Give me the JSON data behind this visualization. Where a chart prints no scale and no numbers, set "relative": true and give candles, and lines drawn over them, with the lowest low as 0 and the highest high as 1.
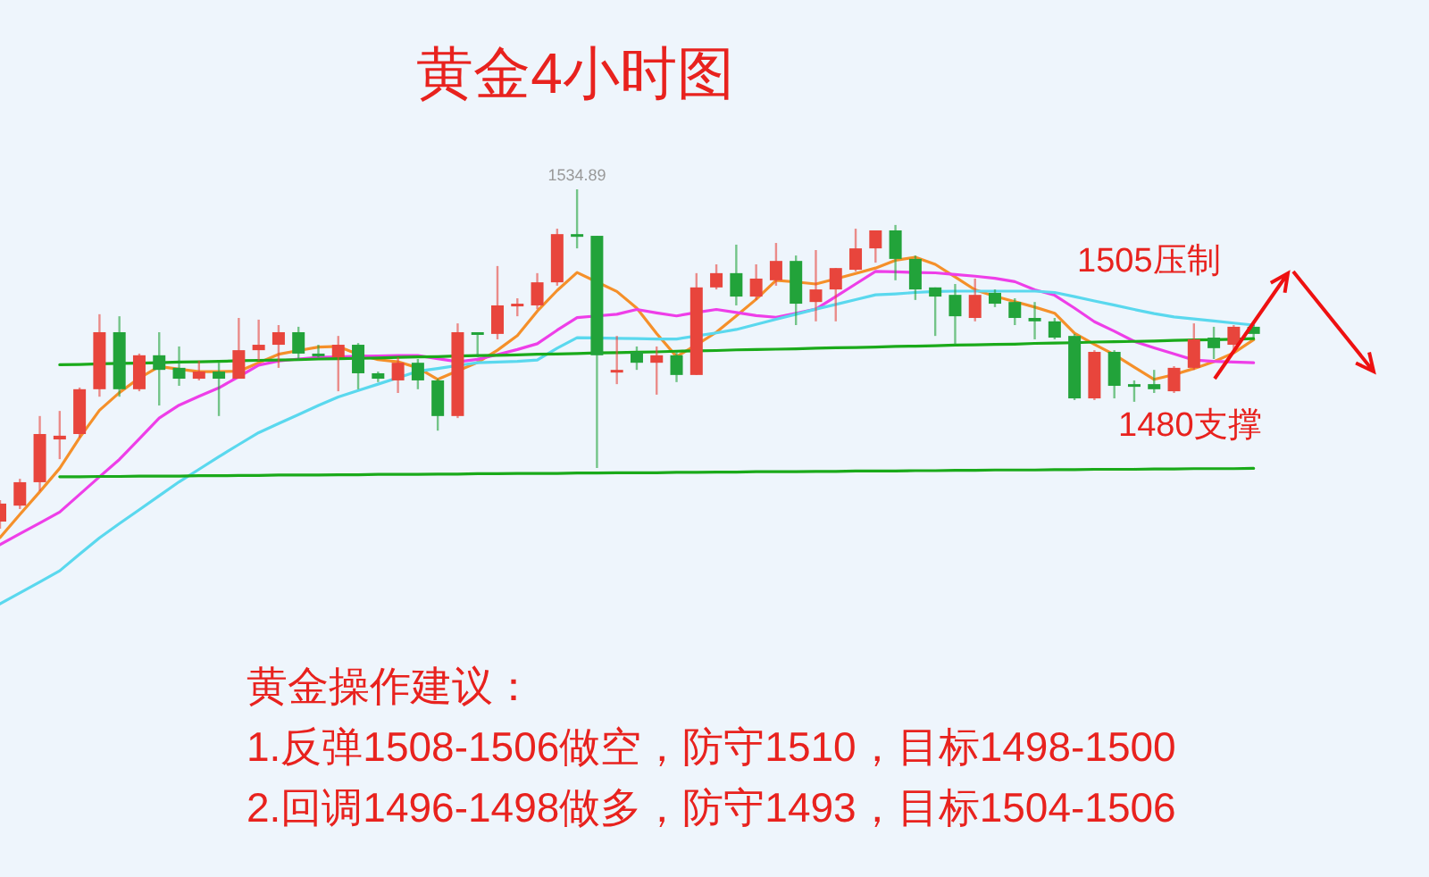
{
  "chart_data": {
    "type": "candlestick",
    "title": "黄金4小时图",
    "relative": true,
    "categories": [
      null,
      null,
      null,
      null,
      null,
      null,
      null,
      null,
      null,
      null,
      null,
      null,
      null,
      null,
      null,
      null,
      null,
      null,
      null,
      null,
      null,
      null,
      null,
      null,
      null,
      null,
      null,
      null,
      null,
      null,
      null,
      null,
      null,
      null,
      null,
      null,
      null,
      null,
      null,
      null,
      null,
      null,
      null,
      null,
      null,
      null,
      null,
      null,
      null,
      null,
      null,
      null,
      null,
      null,
      null,
      null,
      null,
      null,
      null,
      null,
      null,
      null,
      null,
      null
    ],
    "ohlc": [
      [
        0.021,
        0.084,
        0,
        0.074
      ],
      [
        0.068,
        0.147,
        0.058,
        0.137
      ],
      [
        0.137,
        0.332,
        0.111,
        0.279
      ],
      [
        0.263,
        0.347,
        0.205,
        0.274
      ],
      [
        0.279,
        0.416,
        0.268,
        0.411
      ],
      [
        0.411,
        0.632,
        0.389,
        0.579
      ],
      [
        0.579,
        0.626,
        0.389,
        0.411
      ],
      [
        0.411,
        0.516,
        0.405,
        0.511
      ],
      [
        0.511,
        0.579,
        0.363,
        0.468
      ],
      [
        0.474,
        0.537,
        0.421,
        0.442
      ],
      [
        0.442,
        0.495,
        0.437,
        0.463
      ],
      [
        0.463,
        0.489,
        0.332,
        0.442
      ],
      [
        0.442,
        0.621,
        0.442,
        0.526
      ],
      [
        0.526,
        0.616,
        0.495,
        0.542
      ],
      [
        0.542,
        0.6,
        0.474,
        0.579
      ],
      [
        0.579,
        0.595,
        0.495,
        0.516
      ],
      [
        0.516,
        0.542,
        0.505,
        0.511
      ],
      [
        0.505,
        0.568,
        0.405,
        0.542
      ],
      [
        0.542,
        0.547,
        0.411,
        0.458
      ],
      [
        0.458,
        0.463,
        0.432,
        0.442
      ],
      [
        0.437,
        0.505,
        0.4,
        0.489
      ],
      [
        0.489,
        0.5,
        0.411,
        0.437
      ],
      [
        0.437,
        0.442,
        0.289,
        0.332
      ],
      [
        0.332,
        0.605,
        0.326,
        0.579
      ],
      [
        0.579,
        0.579,
        0.505,
        0.574
      ],
      [
        0.574,
        0.774,
        0.558,
        0.658
      ],
      [
        0.658,
        0.679,
        0.626,
        0.663
      ],
      [
        0.658,
        0.753,
        0.647,
        0.726
      ],
      [
        0.726,
        0.884,
        0.716,
        0.868
      ],
      [
        0.868,
        1,
        0.826,
        0.863
      ],
      [
        0.863,
        0.863,
        0.179,
        0.511
      ],
      [
        0.463,
        0.568,
        0.426,
        0.468
      ],
      [
        0.521,
        0.537,
        0.468,
        0.489
      ],
      [
        0.489,
        0.537,
        0.395,
        0.511
      ],
      [
        0.511,
        0.521,
        0.432,
        0.453
      ],
      [
        0.453,
        0.753,
        0.453,
        0.711
      ],
      [
        0.711,
        0.779,
        0.705,
        0.753
      ],
      [
        0.753,
        0.837,
        0.658,
        0.684
      ],
      [
        0.684,
        0.779,
        0.674,
        0.737
      ],
      [
        0.732,
        0.842,
        0.716,
        0.789
      ],
      [
        0.789,
        0.805,
        0.6,
        0.663
      ],
      [
        0.668,
        0.821,
        0.611,
        0.705
      ],
      [
        0.705,
        0.768,
        0.611,
        0.768
      ],
      [
        0.763,
        0.884,
        0.758,
        0.826
      ],
      [
        0.826,
        0.879,
        0.784,
        0.879
      ],
      [
        0.879,
        0.895,
        0.732,
        0.795
      ],
      [
        0.795,
        0.805,
        0.674,
        0.705
      ],
      [
        0.711,
        0.711,
        0.568,
        0.684
      ],
      [
        0.689,
        0.721,
        0.542,
        0.626
      ],
      [
        0.621,
        0.737,
        0.611,
        0.689
      ],
      [
        0.695,
        0.705,
        0.653,
        0.663
      ],
      [
        0.668,
        0.679,
        0.6,
        0.621
      ],
      [
        0.621,
        0.668,
        0.558,
        0.611
      ],
      [
        0.611,
        0.621,
        0.558,
        0.563
      ],
      [
        0.568,
        0.574,
        0.379,
        0.384
      ],
      [
        0.384,
        0.526,
        0.379,
        0.521
      ],
      [
        0.521,
        0.526,
        0.384,
        0.421
      ],
      [
        0.426,
        0.437,
        0.374,
        0.421
      ],
      [
        0.426,
        0.468,
        0.4,
        0.411
      ],
      [
        0.405,
        0.479,
        0.4,
        0.474
      ],
      [
        0.474,
        0.605,
        0.468,
        0.558
      ],
      [
        0.563,
        0.595,
        0.5,
        0.532
      ],
      [
        0.542,
        0.6,
        0.521,
        0.595
      ],
      [
        0.595,
        0.6,
        0.563,
        0.574
      ]
    ],
    "series": [
      {
        "type": "line",
        "color": "#f5902a",
        "values": [
          -0.026,
          0.042,
          0.109,
          0.178,
          0.268,
          0.349,
          0.401,
          0.444,
          0.478,
          0.47,
          0.463,
          0.463,
          0.464,
          0.489,
          0.514,
          0.525,
          0.535,
          0.537,
          0.514,
          0.498,
          0.492,
          0.474,
          0.44,
          0.465,
          0.49,
          0.526,
          0.569,
          0.641,
          0.702,
          0.755,
          0.727,
          0.699,
          0.65,
          0.575,
          0.507,
          0.542,
          0.579,
          0.627,
          0.676,
          0.732,
          0.727,
          0.721,
          0.736,
          0.752,
          0.768,
          0.791,
          0.8,
          0.779,
          0.742,
          0.704,
          0.685,
          0.669,
          0.653,
          0.635,
          0.576,
          0.543,
          0.513,
          0.476,
          0.44,
          0.454,
          0.472,
          0.492,
          0.518,
          0.557
        ]
      },
      {
        "type": "line",
        "color": "#ee3ee8",
        "values": [
          -0.047,
          -0.015,
          0.017,
          0.049,
          0.101,
          0.153,
          0.204,
          0.265,
          0.326,
          0.364,
          0.39,
          0.415,
          0.448,
          0.482,
          0.494,
          0.5,
          0.505,
          0.506,
          0.508,
          0.509,
          0.51,
          0.51,
          0.501,
          0.492,
          0.499,
          0.513,
          0.528,
          0.545,
          0.585,
          0.622,
          0.627,
          0.632,
          0.646,
          0.636,
          0.627,
          0.637,
          0.646,
          0.637,
          0.628,
          0.623,
          0.635,
          0.647,
          0.684,
          0.721,
          0.758,
          0.757,
          0.755,
          0.754,
          0.749,
          0.744,
          0.738,
          0.728,
          0.704,
          0.688,
          0.65,
          0.61,
          0.582,
          0.552,
          0.533,
          0.515,
          0.497,
          0.493,
          0.491,
          0.489
        ]
      },
      {
        "type": "line",
        "color": "#5ad8ee",
        "values": [
          -0.221,
          -0.189,
          -0.157,
          -0.124,
          -0.075,
          -0.027,
          0.015,
          0.056,
          0.097,
          0.138,
          0.175,
          0.212,
          0.248,
          0.283,
          0.31,
          0.336,
          0.363,
          0.388,
          0.407,
          0.426,
          0.445,
          0.464,
          0.472,
          0.481,
          0.489,
          0.491,
          0.493,
          0.497,
          0.532,
          0.563,
          0.562,
          0.561,
          0.56,
          0.559,
          0.559,
          0.568,
          0.577,
          0.587,
          0.602,
          0.617,
          0.632,
          0.647,
          0.661,
          0.675,
          0.689,
          0.692,
          0.696,
          0.699,
          0.7,
          0.7,
          0.7,
          0.7,
          0.7,
          0.696,
          0.684,
          0.671,
          0.659,
          0.646,
          0.634,
          0.624,
          0.618,
          0.612,
          0.606,
          0.6
        ]
      },
      {
        "type": "line",
        "color": "#1aaa1a",
        "values": [
          null,
          null,
          null,
          0.483,
          0.484,
          0.486,
          0.487,
          0.488,
          0.489,
          0.491,
          0.492,
          0.493,
          0.495,
          0.496,
          0.497,
          0.498,
          0.5,
          0.501,
          0.502,
          0.503,
          0.505,
          0.506,
          0.507,
          0.509,
          0.51,
          0.511,
          0.512,
          0.514,
          0.515,
          0.516,
          0.518,
          0.519,
          0.52,
          0.521,
          0.523,
          0.524,
          0.525,
          0.527,
          0.528,
          0.529,
          0.53,
          0.532,
          0.533,
          0.534,
          0.535,
          0.537,
          0.538,
          0.539,
          0.541,
          0.542,
          0.543,
          0.544,
          0.546,
          0.547,
          0.548,
          0.55,
          0.551,
          0.552,
          0.553,
          0.555,
          0.556,
          0.557,
          0.558,
          0.56
        ]
      },
      {
        "type": "line",
        "color": "#1aaa1a",
        "values": [
          null,
          null,
          null,
          0.153,
          0.153,
          0.154,
          0.154,
          0.155,
          0.155,
          0.155,
          0.156,
          0.156,
          0.157,
          0.157,
          0.158,
          0.158,
          0.158,
          0.159,
          0.159,
          0.16,
          0.16,
          0.16,
          0.161,
          0.161,
          0.162,
          0.162,
          0.163,
          0.163,
          0.163,
          0.164,
          0.164,
          0.165,
          0.165,
          0.165,
          0.166,
          0.166,
          0.167,
          0.167,
          0.168,
          0.168,
          0.168,
          0.169,
          0.169,
          0.17,
          0.17,
          0.17,
          0.171,
          0.171,
          0.172,
          0.172,
          0.173,
          0.173,
          0.173,
          0.174,
          0.174,
          0.175,
          0.175,
          0.175,
          0.176,
          0.176,
          0.177,
          0.177,
          0.177,
          0.178
        ]
      }
    ],
    "annotations": [
      {
        "text": "1534.89",
        "y": 1
      },
      "1505压制",
      "1480支撑",
      "黄金操作建议：",
      "1.反弹1508-1506做空，防守1510，目标1498-1500",
      "2.回调1496-1498做多，防守1493，目标1504-1506"
    ]
  }
}
